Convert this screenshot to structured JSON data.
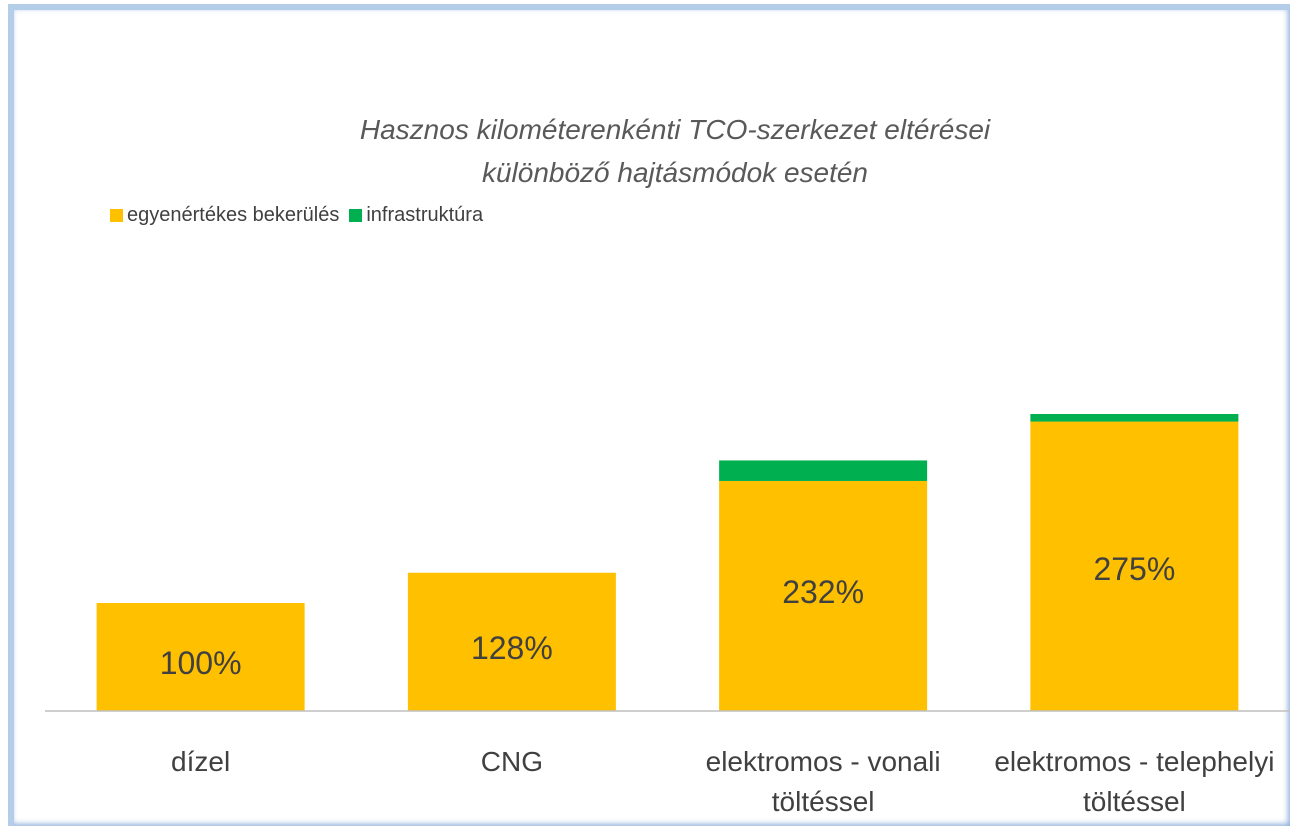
{
  "chart_data": {
    "type": "stacked_bar",
    "title": "Hasznos kilométerenkénti TCO-szerkezet eltérései különböző hajtásmódok esetén",
    "categories": [
      "dízel",
      "CNG",
      "elektromos - vonali töltéssel",
      "elektromos - telephelyi töltéssel"
    ],
    "series": [
      {
        "name": "egyenértékes bekerülés",
        "color": "#ffc000",
        "values": [
          100,
          128,
          213,
          268
        ]
      },
      {
        "name": "infrastruktúra",
        "color": "#00b050",
        "values": [
          0,
          0,
          19,
          7
        ]
      }
    ],
    "totals": {
      "values": [
        100,
        128,
        232,
        275
      ],
      "value_labels": [
        "100%",
        "128%",
        "232%",
        "275%"
      ]
    },
    "ylim": [
      0,
      300
    ],
    "legend": "top-left"
  }
}
